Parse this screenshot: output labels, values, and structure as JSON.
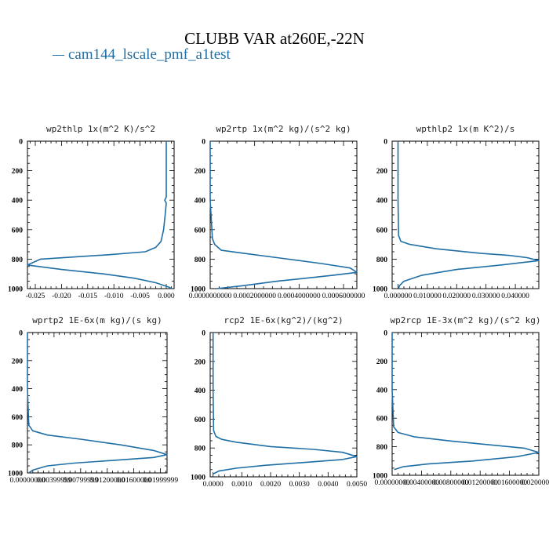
{
  "title": "CLUBB VAR at260E,-22N",
  "legend": {
    "label": "cam144_lscale_pmf_a1test",
    "color": "#1f6fa6"
  },
  "chart_data": [
    {
      "type": "line",
      "title": "wp2thlp   1x(m^2 K)/s^2",
      "xlim": [
        -0.0265,
        0.0015
      ],
      "ylim": [
        1000,
        0
      ],
      "yticks": [
        "0",
        "200",
        "400",
        "600",
        "800",
        "1000"
      ],
      "xticks": [
        {
          "v": -0.025,
          "label": "-0.025"
        },
        {
          "v": -0.02,
          "label": "-0.020"
        },
        {
          "v": -0.015,
          "label": "-0.015"
        },
        {
          "v": -0.01,
          "label": "-0.010"
        },
        {
          "v": -0.005,
          "label": "-0.005"
        },
        {
          "v": 0.0,
          "label": "0.000"
        }
      ],
      "series": [
        {
          "x": [
            0.0,
            0.0,
            0.0,
            -0.0003,
            0.0,
            -0.0002,
            -0.0005,
            -0.001,
            -0.002,
            -0.004,
            -0.011,
            -0.024,
            -0.0265,
            -0.02,
            -0.012,
            -0.006,
            -0.002,
            0.0005,
            0.001
          ],
          "y": [
            0,
            200,
            380,
            400,
            420,
            500,
            600,
            680,
            720,
            750,
            770,
            800,
            840,
            870,
            900,
            930,
            960,
            990,
            1000
          ]
        }
      ]
    },
    {
      "type": "line",
      "title": "wp2rtp   1x(m^2 kg)/(s^2 kg)",
      "xlim": [
        0,
        0.00066
      ],
      "ylim": [
        1000,
        0
      ],
      "yticks": [
        "0",
        "200",
        "400",
        "600",
        "800",
        "1000"
      ],
      "xticks": [
        {
          "v": 0,
          "label": "0.0000000000"
        },
        {
          "v": 0.0002,
          "label": "0.0002000000"
        },
        {
          "v": 0.0004,
          "label": "0.0004000000"
        },
        {
          "v": 0.0006,
          "label": "0.0006000000"
        }
      ],
      "series": [
        {
          "x": [
            0.0,
            0.0,
            1e-05,
            2e-05,
            5e-05,
            0.00015,
            0.0003,
            0.0005,
            0.00063,
            0.00066,
            0.00055,
            0.0003,
            0.00015,
            3e-05
          ],
          "y": [
            0,
            400,
            660,
            700,
            740,
            760,
            790,
            830,
            860,
            890,
            910,
            950,
            980,
            1000
          ]
        }
      ]
    },
    {
      "type": "line",
      "title": "wpthlp2   1x(m K^2)/s",
      "xlim": [
        -0.002,
        0.048
      ],
      "ylim": [
        1000,
        0
      ],
      "yticks": [
        "0",
        "200",
        "400",
        "600",
        "800",
        "1000"
      ],
      "xticks": [
        {
          "v": 0,
          "label": "0.000000"
        },
        {
          "v": 0.01,
          "label": "0.010000"
        },
        {
          "v": 0.02,
          "label": "0.020000"
        },
        {
          "v": 0.03,
          "label": "0.030000"
        },
        {
          "v": 0.04,
          "label": "0.040000"
        }
      ],
      "series": [
        {
          "x": [
            0.0,
            0.0,
            0.0002,
            0.001,
            0.004,
            0.013,
            0.028,
            0.038,
            0.044,
            0.048,
            0.035,
            0.02,
            0.008,
            0.002,
            0.0005,
            0.0002
          ],
          "y": [
            0,
            400,
            640,
            680,
            700,
            730,
            760,
            775,
            790,
            810,
            840,
            870,
            910,
            950,
            980,
            1000
          ]
        }
      ]
    },
    {
      "type": "line",
      "title": "wprtp2   1E-6x(m kg)/(s kg)",
      "xlim": [
        0,
        0.021
      ],
      "ylim": [
        1000,
        0
      ],
      "yticks": [
        "0",
        "200",
        "400",
        "600",
        "800",
        "1000"
      ],
      "xticks": [
        {
          "v": 0,
          "label": "0.00000000"
        },
        {
          "v": 0.004,
          "label": "0.00399999"
        },
        {
          "v": 0.008,
          "label": "0.00799999"
        },
        {
          "v": 0.012,
          "label": "0.01200000"
        },
        {
          "v": 0.016,
          "label": "0.01600000"
        },
        {
          "v": 0.02,
          "label": "0.01999999"
        }
      ],
      "series": [
        {
          "x": [
            0.0,
            0.0,
            0.0002,
            0.0008,
            0.003,
            0.008,
            0.014,
            0.019,
            0.021,
            0.019,
            0.013,
            0.007,
            0.003,
            0.0008,
            0.0002
          ],
          "y": [
            0,
            400,
            660,
            700,
            730,
            760,
            800,
            840,
            870,
            890,
            910,
            930,
            950,
            980,
            1000
          ]
        }
      ]
    },
    {
      "type": "line",
      "title": "rcp2   1E-6x(kg^2)/(kg^2)",
      "xlim": [
        -0.0001,
        0.005
      ],
      "ylim": [
        1000,
        0
      ],
      "yticks": [
        "0",
        "200",
        "400",
        "600",
        "800",
        "1000"
      ],
      "xticks": [
        {
          "v": 0,
          "label": "0.0000"
        },
        {
          "v": 0.001,
          "label": "0.0010"
        },
        {
          "v": 0.002,
          "label": "0.0020"
        },
        {
          "v": 0.003,
          "label": "0.0030"
        },
        {
          "v": 0.004,
          "label": "0.0040"
        },
        {
          "v": 0.005,
          "label": "0.0050"
        }
      ],
      "series": [
        {
          "x": [
            0.0,
            0.0,
            2e-05,
            0.0001,
            0.0003,
            0.0008,
            0.002,
            0.0035,
            0.0045,
            0.005,
            0.0045,
            0.0032,
            0.0018,
            0.0008,
            0.0002,
            0.0
          ],
          "y": [
            0,
            400,
            680,
            720,
            740,
            760,
            790,
            810,
            830,
            860,
            880,
            900,
            920,
            940,
            960,
            980
          ]
        }
      ]
    },
    {
      "type": "line",
      "title": "wp2rcp   1E-3x(m^2 kg)/(s^2 kg)",
      "xlim": [
        0,
        0.02
      ],
      "ylim": [
        1000,
        0
      ],
      "yticks": [
        "0",
        "200",
        "400",
        "600",
        "800",
        "1000"
      ],
      "xticks": [
        {
          "v": 0,
          "label": "0.00000000"
        },
        {
          "v": 0.004,
          "label": "0.00400000"
        },
        {
          "v": 0.008,
          "label": "0.00800000"
        },
        {
          "v": 0.012,
          "label": "0.01200000"
        },
        {
          "v": 0.016,
          "label": "0.01600000"
        },
        {
          "v": 0.02,
          "label": "0.02000000"
        }
      ],
      "series": [
        {
          "x": [
            0.0,
            0.0,
            0.0002,
            0.0008,
            0.003,
            0.008,
            0.014,
            0.018,
            0.02,
            0.017,
            0.011,
            0.005,
            0.0015,
            0.0003
          ],
          "y": [
            0,
            400,
            660,
            700,
            730,
            760,
            790,
            810,
            840,
            870,
            900,
            920,
            940,
            960
          ]
        }
      ]
    }
  ]
}
